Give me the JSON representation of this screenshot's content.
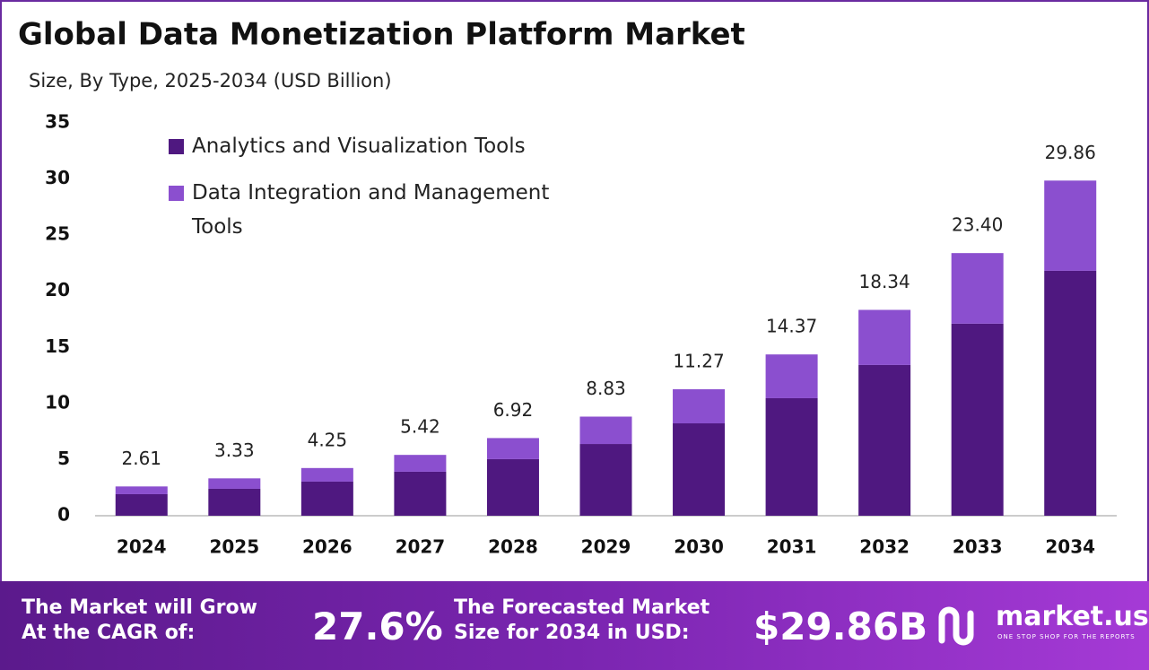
{
  "chart_data": {
    "type": "stacked_bar",
    "title": "Global Data Monetization Platform Market",
    "subtitle": "Size, By Type, 2025-2034 (USD Billion)",
    "categories": [
      "2024",
      "2025",
      "2026",
      "2027",
      "2028",
      "2029",
      "2030",
      "2031",
      "2032",
      "2033",
      "2034"
    ],
    "series": [
      {
        "name": "Analytics and Visualization Tools",
        "color": "#4f1880",
        "values": [
          1.92,
          2.4,
          3.04,
          3.92,
          5.04,
          6.39,
          8.23,
          10.47,
          13.43,
          17.11,
          21.82
        ]
      },
      {
        "name": "Data Integration and Management Tools",
        "color": "#8b4fcf",
        "values": [
          0.69,
          0.93,
          1.21,
          1.5,
          1.88,
          2.44,
          3.04,
          3.9,
          4.91,
          6.29,
          8.04
        ]
      }
    ],
    "totals": [
      2.61,
      3.33,
      4.25,
      5.42,
      6.92,
      8.83,
      11.27,
      14.37,
      18.34,
      23.4,
      29.86
    ],
    "total_labels": [
      "2.61",
      "3.33",
      "4.25",
      "5.42",
      "6.92",
      "8.83",
      "11.27",
      "14.37",
      "18.34",
      "23.40",
      "29.86"
    ],
    "ylim": [
      0,
      35
    ],
    "yticks": [
      0,
      5,
      10,
      15,
      20,
      25,
      30,
      35
    ],
    "grid": false,
    "legend": "top-left"
  },
  "footer": {
    "cagr_text": [
      "The Market will Grow",
      "At the CAGR of:"
    ],
    "cagr": "27.6%",
    "forecast_text": [
      "The Forecasted Market",
      "Size for 2034 in USD:"
    ],
    "forecast": "$29.86B",
    "brand": "market.us",
    "tagline": "ONE STOP SHOP FOR THE REPORTS"
  }
}
